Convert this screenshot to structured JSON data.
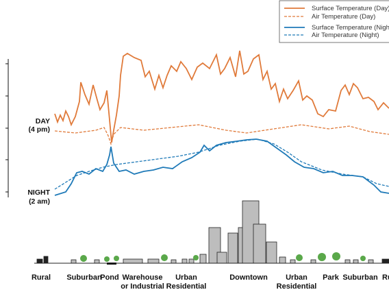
{
  "legend": {
    "day": [
      "Surface Temperature (Day)",
      "Air Temperature  (Day)"
    ],
    "night": [
      "Surface Temperature (Night)",
      "Air Temperature (Night)"
    ]
  },
  "axis_labels": {
    "day": [
      "DAY",
      "(4 pm)"
    ],
    "night": [
      "NIGHT",
      "(2 am)"
    ]
  },
  "zones": [
    [
      "Rural"
    ],
    [
      "Suburban"
    ],
    [
      "Pond"
    ],
    [
      "Warehouse",
      "or Industrial"
    ],
    [
      "Urban",
      "Residential"
    ],
    [
      "Downtown"
    ],
    [
      "Urban",
      "Residential"
    ],
    [
      "Park"
    ],
    [
      "Suburban"
    ],
    [
      "Rural"
    ]
  ]
}
